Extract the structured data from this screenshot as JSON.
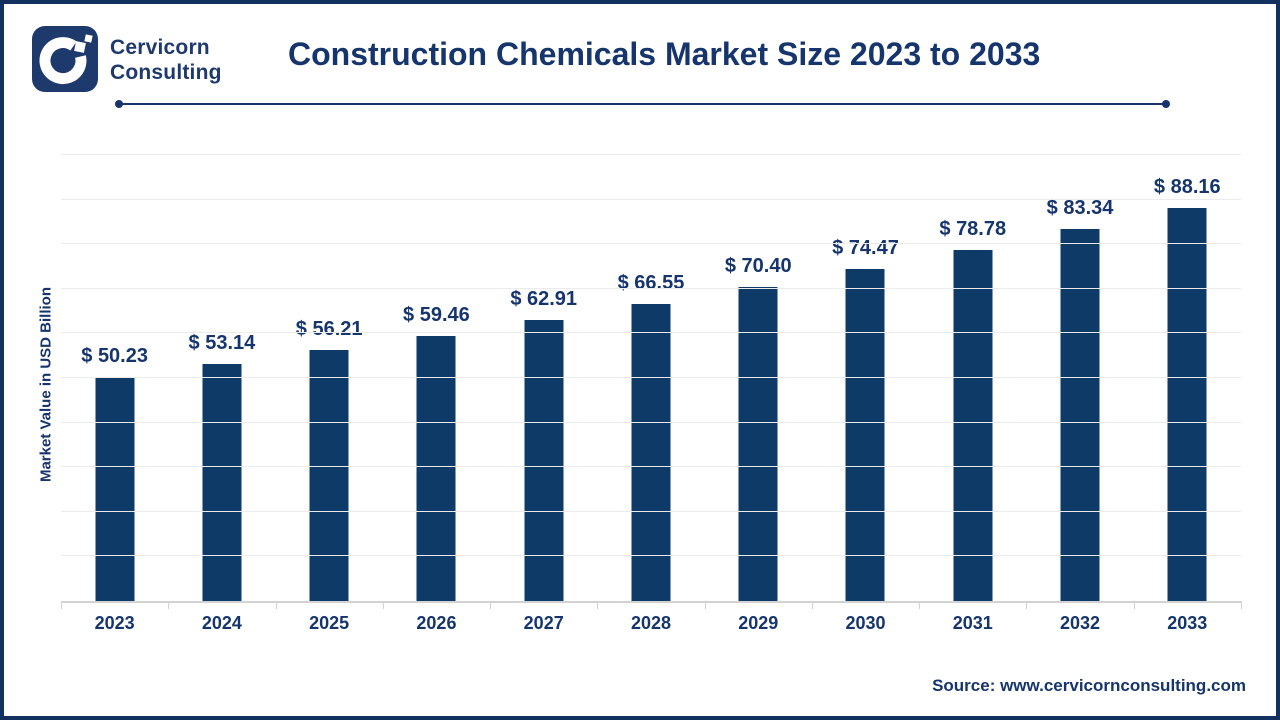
{
  "header": {
    "brand_line1": "Cervicorn",
    "brand_line2": "Consulting",
    "title": "Construction Chemicals Market Size 2023 to 2033"
  },
  "chart_data": {
    "type": "bar",
    "title": "Construction Chemicals Market Size 2023 to 2033",
    "categories": [
      "2023",
      "2024",
      "2025",
      "2026",
      "2027",
      "2028",
      "2029",
      "2030",
      "2031",
      "2032",
      "2033"
    ],
    "values": [
      50.23,
      53.14,
      56.21,
      59.46,
      62.91,
      66.55,
      70.4,
      74.47,
      78.78,
      83.34,
      88.16
    ],
    "value_labels": [
      "$ 50.23",
      "$ 53.14",
      "$ 56.21",
      "$ 59.46",
      "$ 62.91",
      "$ 66.55",
      "$ 70.40",
      "$ 74.47",
      "$ 78.78",
      "$ 83.34",
      "$ 88.16"
    ],
    "xlabel": "",
    "ylabel": "Market Value in USD Billion",
    "ylim": [
      0,
      100
    ],
    "gridline_step": 10,
    "grid": "horizontal",
    "legend": "none",
    "unit": "USD Billion"
  },
  "footer": {
    "source": "Source: www.cervicornconsulting.com"
  },
  "colors": {
    "bar": "#0d3a66",
    "text_navy": "#16356d",
    "logo_navy": "#1e3a6d",
    "gridline": "#ebebeb",
    "axis": "#d2d2d2",
    "border": "#12315e"
  }
}
